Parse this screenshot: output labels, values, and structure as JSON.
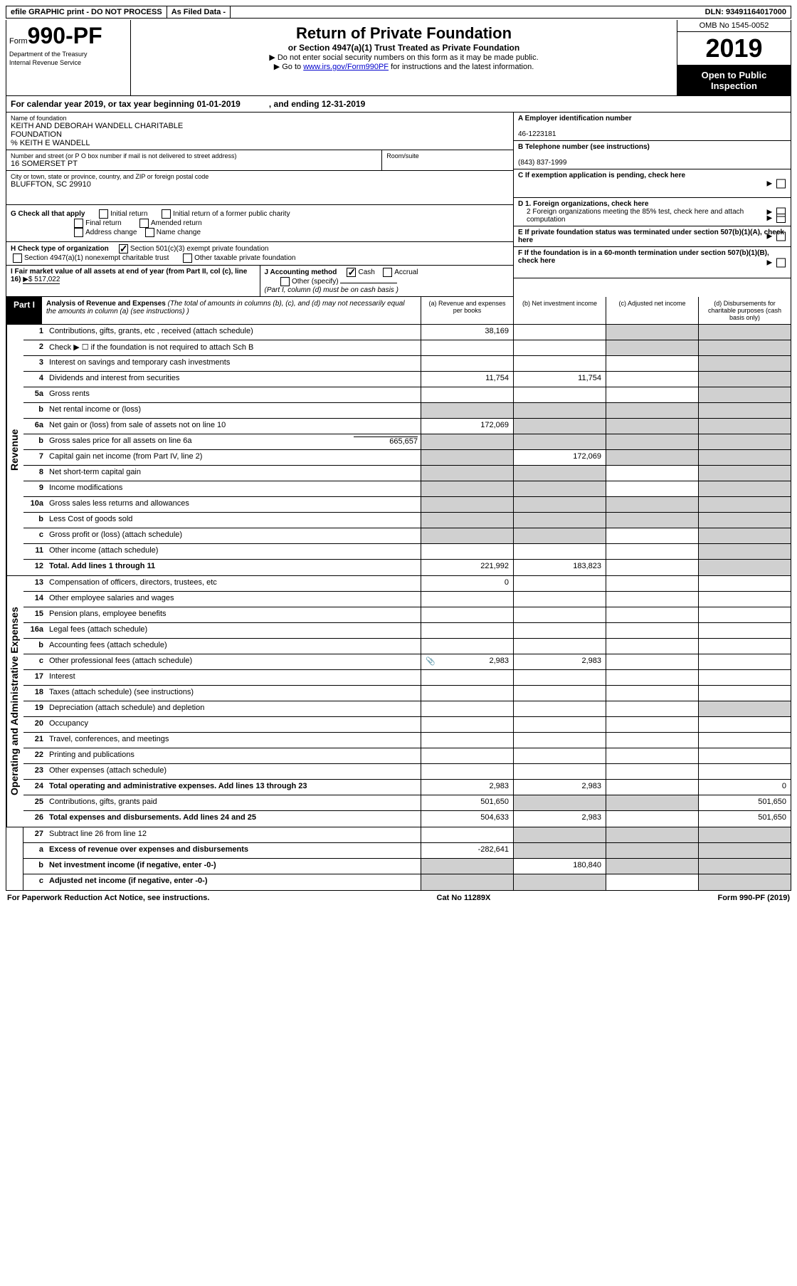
{
  "topbar": {
    "efile": "efile GRAPHIC print - DO NOT PROCESS",
    "asfiled": "As Filed Data -",
    "dln": "DLN: 93491164017000"
  },
  "header": {
    "form_prefix": "Form",
    "form_num": "990-PF",
    "dept1": "Department of the Treasury",
    "dept2": "Internal Revenue Service",
    "title": "Return of Private Foundation",
    "subtitle": "or Section 4947(a)(1) Trust Treated as Private Foundation",
    "note1": "▶ Do not enter social security numbers on this form as it may be made public.",
    "note2_pre": "▶ Go to ",
    "note2_link": "www.irs.gov/Form990PF",
    "note2_post": " for instructions and the latest information.",
    "omb": "OMB No 1545-0052",
    "year": "2019",
    "open": "Open to Public Inspection"
  },
  "calendar": {
    "text1": "For calendar year 2019, or tax year beginning ",
    "begin": "01-01-2019",
    "text2": ", and ending ",
    "end": "12-31-2019"
  },
  "entity": {
    "name_label": "Name of foundation",
    "name1": "KEITH AND DEBORAH WANDELL CHARITABLE",
    "name2": "FOUNDATION",
    "care_of": "% KEITH E WANDELL",
    "addr_label": "Number and street (or P O  box number if mail is not delivered to street address)",
    "addr": "16 SOMERSET PT",
    "room_label": "Room/suite",
    "city_label": "City or town, state or province, country, and ZIP or foreign postal code",
    "city": "BLUFFTON, SC  29910"
  },
  "boxA": {
    "label": "A Employer identification number",
    "val": "46-1223181"
  },
  "boxB": {
    "label": "B Telephone number (see instructions)",
    "val": "(843) 837-1999"
  },
  "boxC": {
    "label": "C If exemption application is pending, check here"
  },
  "boxD1": {
    "label": "D 1. Foreign organizations, check here"
  },
  "boxD2": {
    "label": "2 Foreign organizations meeting the 85% test, check here and attach computation"
  },
  "boxE": {
    "label": "E If private foundation status was terminated under section 507(b)(1)(A), check here"
  },
  "boxF": {
    "label": "F If the foundation is in a 60-month termination under section 507(b)(1)(B), check here"
  },
  "checkG": {
    "label": "G Check all that apply",
    "opts": [
      "Initial return",
      "Initial return of a former public charity",
      "Final return",
      "Amended return",
      "Address change",
      "Name change"
    ]
  },
  "checkH": {
    "label": "H Check type of organization",
    "opt1": "Section 501(c)(3) exempt private foundation",
    "opt2": "Section 4947(a)(1) nonexempt charitable trust",
    "opt3": "Other taxable private foundation"
  },
  "boxI": {
    "label": "I Fair market value of all assets at end of year (from Part II, col  (c), line 16)",
    "val": "▶$  517,022"
  },
  "boxJ": {
    "label": "J Accounting method",
    "cash": "Cash",
    "accrual": "Accrual",
    "other": "Other (specify)",
    "note": "(Part I, column (d) must be on cash basis )"
  },
  "part1": {
    "label": "Part I",
    "title": "Analysis of Revenue and Expenses",
    "note": "(The total of amounts in columns (b), (c), and (d) may not necessarily equal the amounts in column (a) (see instructions) )",
    "col_a": "(a)   Revenue and expenses per books",
    "col_b": "(b)   Net investment income",
    "col_c": "(c)  Adjusted net income",
    "col_d": "(d)  Disbursements for charitable purposes (cash basis only)"
  },
  "sections": {
    "revenue": "Revenue",
    "expenses": "Operating and Administrative Expenses"
  },
  "rows": [
    {
      "n": "1",
      "d": "Contributions, gifts, grants, etc , received (attach schedule)",
      "a": "38,169",
      "c_sh": true,
      "d_sh": true
    },
    {
      "n": "2",
      "d": "Check ▶ ☐ if the foundation is not required to attach Sch  B",
      "c_sh": true,
      "d_sh": true
    },
    {
      "n": "3",
      "d": "Interest on savings and temporary cash investments",
      "d_sh": true
    },
    {
      "n": "4",
      "d": "Dividends and interest from securities",
      "a": "11,754",
      "b": "11,754",
      "d_sh": true
    },
    {
      "n": "5a",
      "d": "Gross rents",
      "d_sh": true
    },
    {
      "n": "b",
      "d": "Net rental income or (loss)",
      "a_sh": true,
      "b_sh": true,
      "c_sh": true,
      "d_sh": true
    },
    {
      "n": "6a",
      "d": "Net gain or (loss) from sale of assets not on line 10",
      "a": "172,069",
      "b_sh": true,
      "c_sh": true,
      "d_sh": true
    },
    {
      "n": "b",
      "d": "Gross sales price for all assets on line 6a",
      "inline": "665,657",
      "a_sh": true,
      "b_sh": true,
      "c_sh": true,
      "d_sh": true
    },
    {
      "n": "7",
      "d": "Capital gain net income (from Part IV, line 2)",
      "a_sh": true,
      "b": "172,069",
      "c_sh": true,
      "d_sh": true
    },
    {
      "n": "8",
      "d": "Net short-term capital gain",
      "a_sh": true,
      "b_sh": true,
      "d_sh": true
    },
    {
      "n": "9",
      "d": "Income modifications",
      "a_sh": true,
      "b_sh": true,
      "d_sh": true
    },
    {
      "n": "10a",
      "d": "Gross sales less returns and allowances",
      "a_sh": true,
      "b_sh": true,
      "c_sh": true,
      "d_sh": true
    },
    {
      "n": "b",
      "d": "Less  Cost of goods sold",
      "a_sh": true,
      "b_sh": true,
      "c_sh": true,
      "d_sh": true
    },
    {
      "n": "c",
      "d": "Gross profit or (loss) (attach schedule)",
      "a_sh": true,
      "b_sh": true,
      "d_sh": true
    },
    {
      "n": "11",
      "d": "Other income (attach schedule)",
      "d_sh": true
    },
    {
      "n": "12",
      "d": "Total. Add lines 1 through 11",
      "bold": true,
      "a": "221,992",
      "b": "183,823",
      "d_sh": true
    }
  ],
  "exp_rows": [
    {
      "n": "13",
      "d": "Compensation of officers, directors, trustees, etc",
      "a": "0"
    },
    {
      "n": "14",
      "d": "Other employee salaries and wages"
    },
    {
      "n": "15",
      "d": "Pension plans, employee benefits"
    },
    {
      "n": "16a",
      "d": "Legal fees (attach schedule)"
    },
    {
      "n": "b",
      "d": "Accounting fees (attach schedule)"
    },
    {
      "n": "c",
      "d": "Other professional fees (attach schedule)",
      "icon": true,
      "a": "2,983",
      "b": "2,983"
    },
    {
      "n": "17",
      "d": "Interest"
    },
    {
      "n": "18",
      "d": "Taxes (attach schedule) (see instructions)"
    },
    {
      "n": "19",
      "d": "Depreciation (attach schedule) and depletion",
      "d_sh": true
    },
    {
      "n": "20",
      "d": "Occupancy"
    },
    {
      "n": "21",
      "d": "Travel, conferences, and meetings"
    },
    {
      "n": "22",
      "d": "Printing and publications"
    },
    {
      "n": "23",
      "d": "Other expenses (attach schedule)"
    },
    {
      "n": "24",
      "d": "Total operating and administrative expenses. Add lines 13 through 23",
      "bold": true,
      "a": "2,983",
      "b": "2,983",
      "dv": "0"
    },
    {
      "n": "25",
      "d": "Contributions, gifts, grants paid",
      "a": "501,650",
      "b_sh": true,
      "c_sh": true,
      "dv": "501,650"
    },
    {
      "n": "26",
      "d": "Total expenses and disbursements. Add lines 24 and 25",
      "bold": true,
      "a": "504,633",
      "b": "2,983",
      "dv": "501,650"
    }
  ],
  "final_rows": [
    {
      "n": "27",
      "d": "Subtract line 26 from line 12",
      "b_sh": true,
      "c_sh": true,
      "d_sh": true
    },
    {
      "n": "a",
      "d": "Excess of revenue over expenses and disbursements",
      "bold": true,
      "a": "-282,641",
      "b_sh": true,
      "c_sh": true,
      "d_sh": true
    },
    {
      "n": "b",
      "d": "Net investment income (if negative, enter -0-)",
      "bold": true,
      "a_sh": true,
      "b": "180,840",
      "c_sh": true,
      "d_sh": true
    },
    {
      "n": "c",
      "d": "Adjusted net income (if negative, enter -0-)",
      "bold": true,
      "a_sh": true,
      "b_sh": true,
      "d_sh": true
    }
  ],
  "footer": {
    "left": "For Paperwork Reduction Act Notice, see instructions.",
    "mid": "Cat No  11289X",
    "right": "Form 990-PF (2019)"
  }
}
